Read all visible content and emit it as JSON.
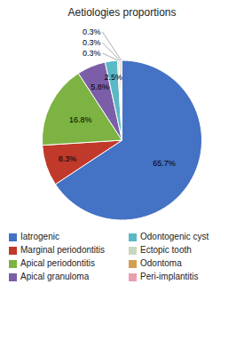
{
  "chart_data": {
    "type": "pie",
    "title": "Aetiologies proportions",
    "categories": [
      "Iatrogenic",
      "Marginal periodontitis",
      "Apical periodontitis",
      "Apical granuloma",
      "Odontogenic cyst",
      "Ectopic tooth",
      "Odontoma",
      "Peri-implantitis"
    ],
    "values": [
      65.7,
      8.3,
      16.8,
      5.8,
      2.5,
      0.3,
      0.3,
      0.3
    ],
    "value_labels": [
      "65.7%",
      "8.3%",
      "16.8%",
      "5.8%",
      "2.5%",
      "0.3%",
      "0.3%",
      "0.3%"
    ],
    "colors": [
      "#4472C4",
      "#C0392B",
      "#7CB342",
      "#7B5EA7",
      "#5BB8C4",
      "#C8D8C0",
      "#D4A050",
      "#E8A0B0"
    ],
    "data_labels": true,
    "legend": "bottom"
  }
}
